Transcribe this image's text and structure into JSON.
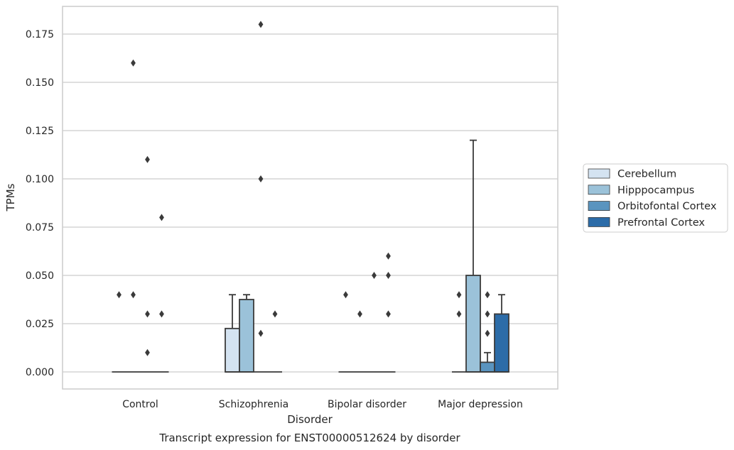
{
  "chart_data": {
    "type": "box",
    "caption": "Transcript expression for ENST00000512624 by disorder",
    "xlabel": "Disorder",
    "ylabel": "TPMs",
    "ylim": [
      -0.009,
      0.189
    ],
    "yticks": [
      "0.000",
      "0.025",
      "0.050",
      "0.075",
      "0.100",
      "0.125",
      "0.150",
      "0.175"
    ],
    "grid": "horizontal",
    "legend_position": "right",
    "categories": [
      "Control",
      "Schizophrenia",
      "Bipolar disorder",
      "Major depression"
    ],
    "series": [
      {
        "name": "Cerebellum",
        "color": "#d4e3f1",
        "boxes": [
          {
            "q1": 0,
            "median": 0,
            "q3": 0,
            "whisker_low": 0,
            "whisker_high": 0,
            "outliers": [
              0.04
            ]
          },
          {
            "q1": 0,
            "median": 0,
            "q3": 0.0225,
            "whisker_low": 0,
            "whisker_high": 0.04,
            "outliers": []
          },
          {
            "q1": 0,
            "median": 0,
            "q3": 0,
            "whisker_low": 0,
            "whisker_high": 0,
            "outliers": [
              0.04
            ]
          },
          {
            "q1": 0,
            "median": 0,
            "q3": 0,
            "whisker_low": 0,
            "whisker_high": 0,
            "outliers": [
              0.04,
              0.03
            ]
          }
        ]
      },
      {
        "name": "Hipppocampus",
        "color": "#9bc2d9",
        "boxes": [
          {
            "q1": 0,
            "median": 0,
            "q3": 0,
            "whisker_low": 0,
            "whisker_high": 0,
            "outliers": [
              0.16,
              0.04
            ]
          },
          {
            "q1": 0,
            "median": 0,
            "q3": 0.0375,
            "whisker_low": 0,
            "whisker_high": 0.04,
            "outliers": []
          },
          {
            "q1": 0,
            "median": 0,
            "q3": 0,
            "whisker_low": 0,
            "whisker_high": 0,
            "outliers": [
              0.03
            ]
          },
          {
            "q1": 0,
            "median": 0,
            "q3": 0.05,
            "whisker_low": 0,
            "whisker_high": 0.12,
            "outliers": []
          }
        ]
      },
      {
        "name": "Orbitofontal Cortex",
        "color": "#5a94bf",
        "boxes": [
          {
            "q1": 0,
            "median": 0,
            "q3": 0,
            "whisker_low": 0,
            "whisker_high": 0,
            "outliers": [
              0.11,
              0.03,
              0.01
            ]
          },
          {
            "q1": 0,
            "median": 0,
            "q3": 0,
            "whisker_low": 0,
            "whisker_high": 0,
            "outliers": [
              0.18,
              0.1,
              0.02
            ]
          },
          {
            "q1": 0,
            "median": 0,
            "q3": 0,
            "whisker_low": 0,
            "whisker_high": 0,
            "outliers": [
              0.05
            ]
          },
          {
            "q1": 0,
            "median": 0,
            "q3": 0.005,
            "whisker_low": 0,
            "whisker_high": 0.01,
            "outliers": [
              0.04,
              0.03,
              0.02
            ]
          }
        ]
      },
      {
        "name": "Prefrontal Cortex",
        "color": "#2c6ca8",
        "boxes": [
          {
            "q1": 0,
            "median": 0,
            "q3": 0,
            "whisker_low": 0,
            "whisker_high": 0,
            "outliers": [
              0.08,
              0.03
            ]
          },
          {
            "q1": 0,
            "median": 0,
            "q3": 0,
            "whisker_low": 0,
            "whisker_high": 0,
            "outliers": [
              0.03
            ]
          },
          {
            "q1": 0,
            "median": 0,
            "q3": 0,
            "whisker_low": 0,
            "whisker_high": 0,
            "outliers": [
              0.06,
              0.05,
              0.03
            ]
          },
          {
            "q1": 0,
            "median": 0,
            "q3": 0.03,
            "whisker_low": 0,
            "whisker_high": 0.04,
            "outliers": []
          }
        ]
      }
    ]
  }
}
